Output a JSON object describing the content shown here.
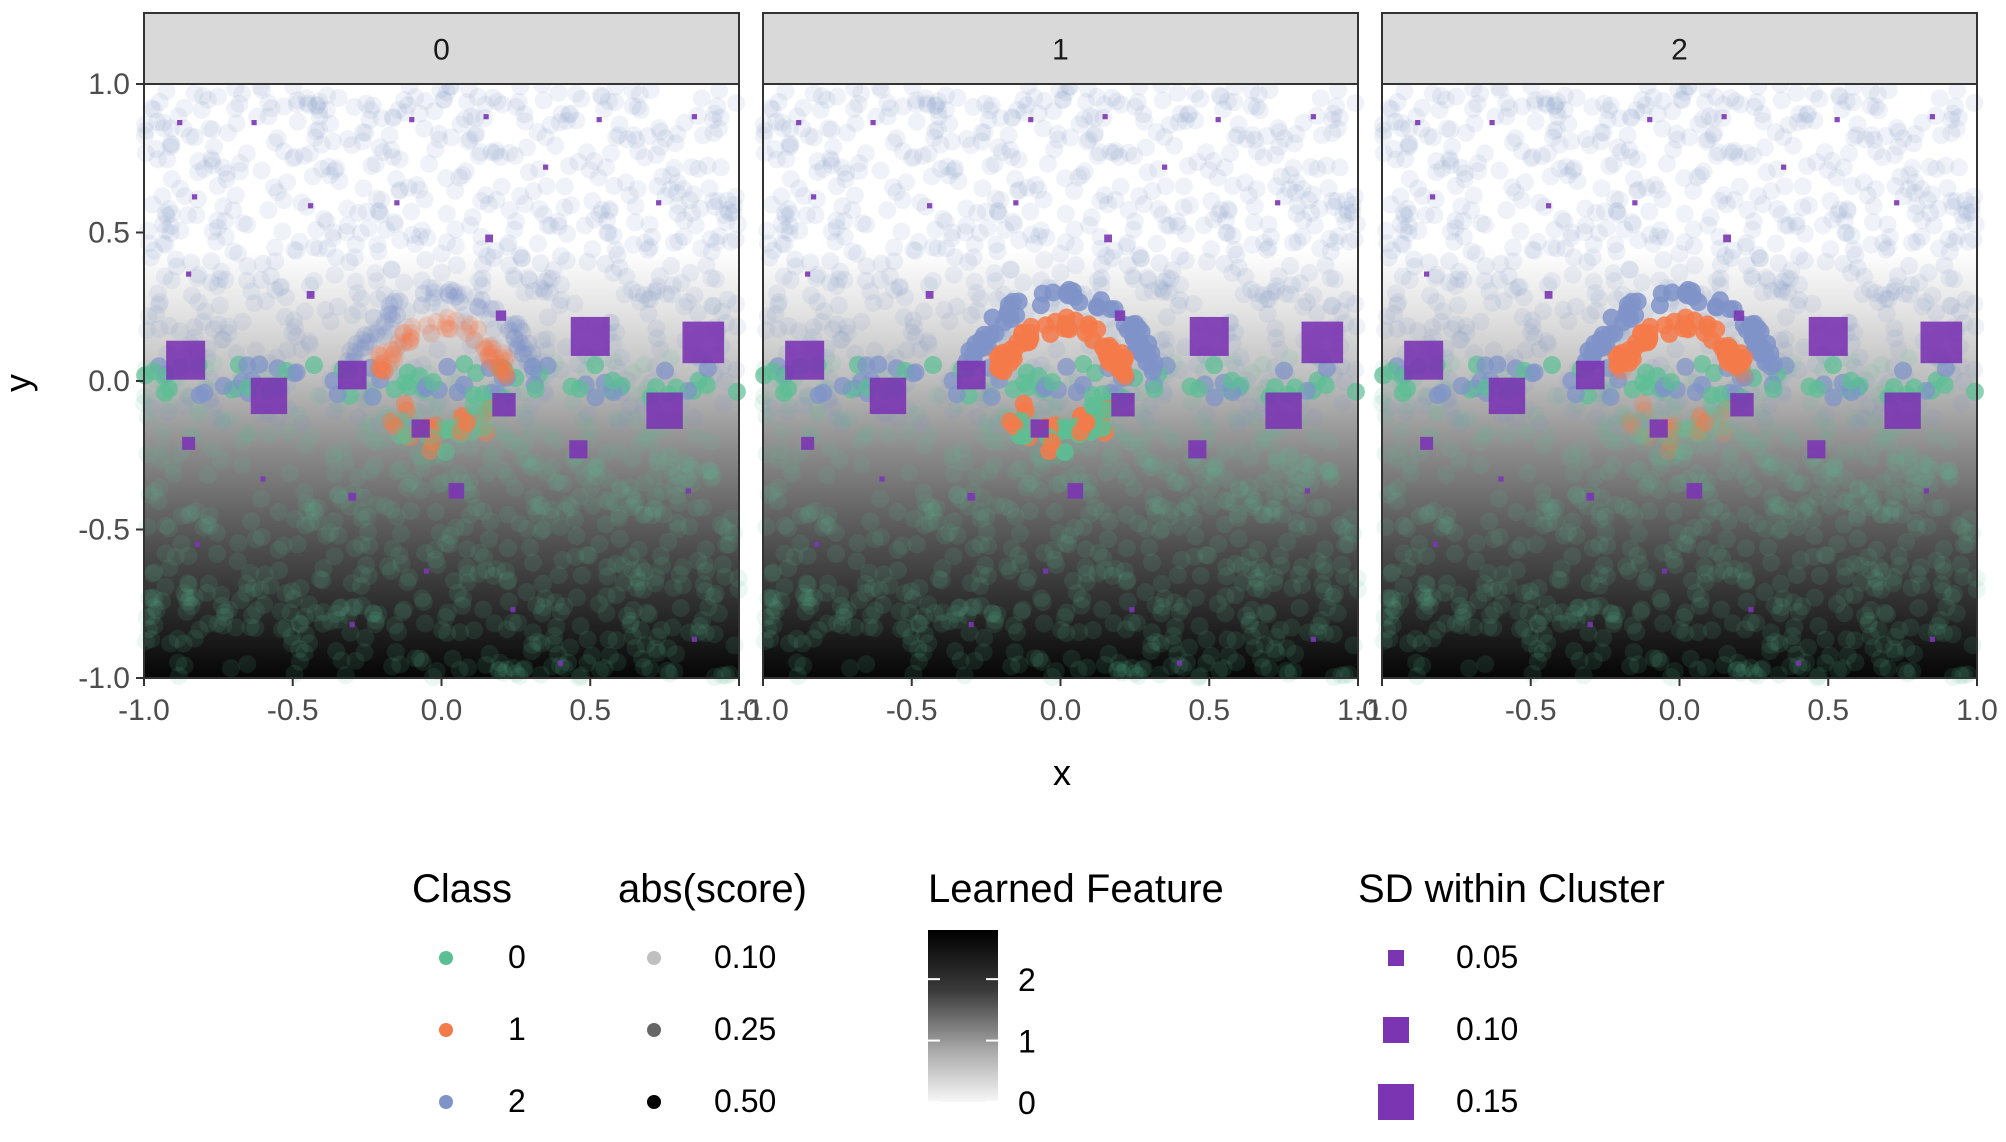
{
  "chart_data": {
    "type": "scatter",
    "title": "",
    "facet_by": "Cluster",
    "panels": [
      "0",
      "1",
      "2"
    ],
    "xlabel": "x",
    "ylabel": "y",
    "xlim": [
      -1.0,
      1.0
    ],
    "ylim": [
      -1.0,
      1.0
    ],
    "x_ticks": [
      "-1.0",
      "-0.5",
      "0.0",
      "0.5",
      "1.0"
    ],
    "y_ticks": [
      "1.0",
      "0.5",
      "0.0",
      "-0.5",
      "-1.0"
    ],
    "background_gradient": "Learned Feature increasing toward bottom (y = -1)",
    "legends": {
      "class": {
        "title": "Class",
        "entries": [
          {
            "label": "0",
            "color": "#5bbf94"
          },
          {
            "label": "1",
            "color": "#f47a4a"
          },
          {
            "label": "2",
            "color": "#7f93c9"
          }
        ]
      },
      "score": {
        "title": "abs(score)",
        "entries": [
          {
            "label": "0.10",
            "value": 0.1
          },
          {
            "label": "0.25",
            "value": 0.25
          },
          {
            "label": "0.50",
            "value": 0.5
          }
        ]
      },
      "feature": {
        "title": "Learned Feature",
        "ticks": [
          "2",
          "1",
          "0"
        ],
        "range": [
          0,
          2.8
        ]
      },
      "sd": {
        "title": "SD within Cluster",
        "color": "#7b35b2",
        "entries": [
          {
            "label": "0.05",
            "value": 0.05
          },
          {
            "label": "0.10",
            "value": 0.1
          },
          {
            "label": "0.15",
            "value": 0.15
          }
        ]
      }
    },
    "class_colors": {
      "0": "#5bbf94",
      "1": "#f47a4a",
      "2": "#7f93c9"
    },
    "cluster_squares": [
      {
        "x": -0.86,
        "y": 0.07,
        "sd": 0.15
      },
      {
        "x": -0.58,
        "y": -0.05,
        "sd": 0.14
      },
      {
        "x": -0.3,
        "y": 0.02,
        "sd": 0.11
      },
      {
        "x": 0.5,
        "y": 0.15,
        "sd": 0.15
      },
      {
        "x": 0.88,
        "y": 0.13,
        "sd": 0.16
      },
      {
        "x": 0.75,
        "y": -0.1,
        "sd": 0.14
      },
      {
        "x": 0.21,
        "y": -0.08,
        "sd": 0.09
      },
      {
        "x": -0.07,
        "y": -0.16,
        "sd": 0.07
      },
      {
        "x": 0.05,
        "y": -0.37,
        "sd": 0.06
      },
      {
        "x": 0.46,
        "y": -0.23,
        "sd": 0.07
      },
      {
        "x": -0.85,
        "y": -0.21,
        "sd": 0.05
      },
      {
        "x": 0.2,
        "y": 0.22,
        "sd": 0.04
      },
      {
        "x": -0.88,
        "y": 0.87,
        "sd": 0.02
      },
      {
        "x": -0.63,
        "y": 0.87,
        "sd": 0.02
      },
      {
        "x": -0.1,
        "y": 0.88,
        "sd": 0.02
      },
      {
        "x": 0.15,
        "y": 0.89,
        "sd": 0.02
      },
      {
        "x": 0.53,
        "y": 0.88,
        "sd": 0.02
      },
      {
        "x": 0.85,
        "y": 0.89,
        "sd": 0.02
      },
      {
        "x": 0.35,
        "y": 0.72,
        "sd": 0.02
      },
      {
        "x": -0.83,
        "y": 0.62,
        "sd": 0.02
      },
      {
        "x": -0.44,
        "y": 0.59,
        "sd": 0.02
      },
      {
        "x": -0.15,
        "y": 0.6,
        "sd": 0.02
      },
      {
        "x": 0.73,
        "y": 0.6,
        "sd": 0.02
      },
      {
        "x": 0.16,
        "y": 0.48,
        "sd": 0.03
      },
      {
        "x": -0.85,
        "y": 0.36,
        "sd": 0.02
      },
      {
        "x": -0.44,
        "y": 0.29,
        "sd": 0.03
      },
      {
        "x": -0.6,
        "y": -0.33,
        "sd": 0.02
      },
      {
        "x": -0.3,
        "y": -0.39,
        "sd": 0.03
      },
      {
        "x": 0.83,
        "y": -0.37,
        "sd": 0.02
      },
      {
        "x": -0.05,
        "y": -0.64,
        "sd": 0.02
      },
      {
        "x": 0.24,
        "y": -0.77,
        "sd": 0.02
      },
      {
        "x": -0.82,
        "y": -0.55,
        "sd": 0.02
      },
      {
        "x": 0.85,
        "y": -0.87,
        "sd": 0.02
      },
      {
        "x": -0.3,
        "y": -0.82,
        "sd": 0.02
      },
      {
        "x": 0.4,
        "y": -0.95,
        "sd": 0.02
      }
    ]
  }
}
